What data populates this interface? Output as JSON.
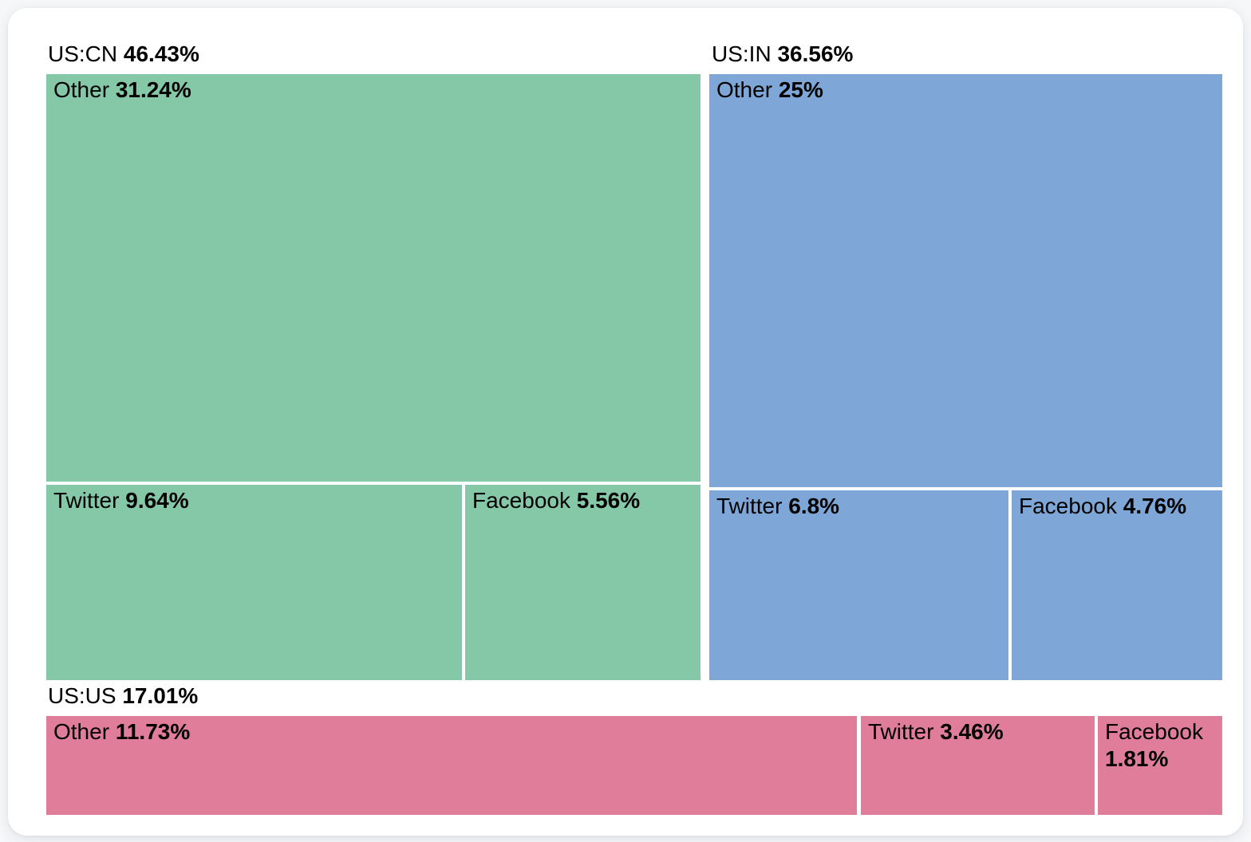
{
  "chart_data": {
    "type": "treemap",
    "title": "",
    "unit": "%",
    "legend": false,
    "layout_hint": "three groups tiled left-to-right then bottom; each group split into Other/Twitter/Facebook cells; group label above its tile area",
    "colors": {
      "us_cn": "#85C8A8",
      "us_in": "#7EA7D8",
      "us_us": "#DF7D9B",
      "background": "#F6F7F9",
      "card": "#FFFFFF",
      "text": "#000000"
    },
    "groups": [
      {
        "name": "US:CN",
        "value": 46.43,
        "value_text": "46.43%",
        "color": "#85C8A8",
        "children": [
          {
            "name": "Other",
            "value": 31.24,
            "value_text": "31.24%"
          },
          {
            "name": "Twitter",
            "value": 9.64,
            "value_text": "9.64%"
          },
          {
            "name": "Facebook",
            "value": 5.56,
            "value_text": "5.56%"
          }
        ]
      },
      {
        "name": "US:IN",
        "value": 36.56,
        "value_text": "36.56%",
        "color": "#7EA7D8",
        "children": [
          {
            "name": "Other",
            "value": 25,
            "value_text": "25%"
          },
          {
            "name": "Twitter",
            "value": 6.8,
            "value_text": "6.8%"
          },
          {
            "name": "Facebook",
            "value": 4.76,
            "value_text": "4.76%"
          }
        ]
      },
      {
        "name": "US:US",
        "value": 17.01,
        "value_text": "17.01%",
        "color": "#DF7D9B",
        "children": [
          {
            "name": "Other",
            "value": 11.73,
            "value_text": "11.73%"
          },
          {
            "name": "Twitter",
            "value": 3.46,
            "value_text": "3.46%"
          },
          {
            "name": "Facebook",
            "value": 1.81,
            "value_text": "1.81%"
          }
        ]
      }
    ]
  }
}
